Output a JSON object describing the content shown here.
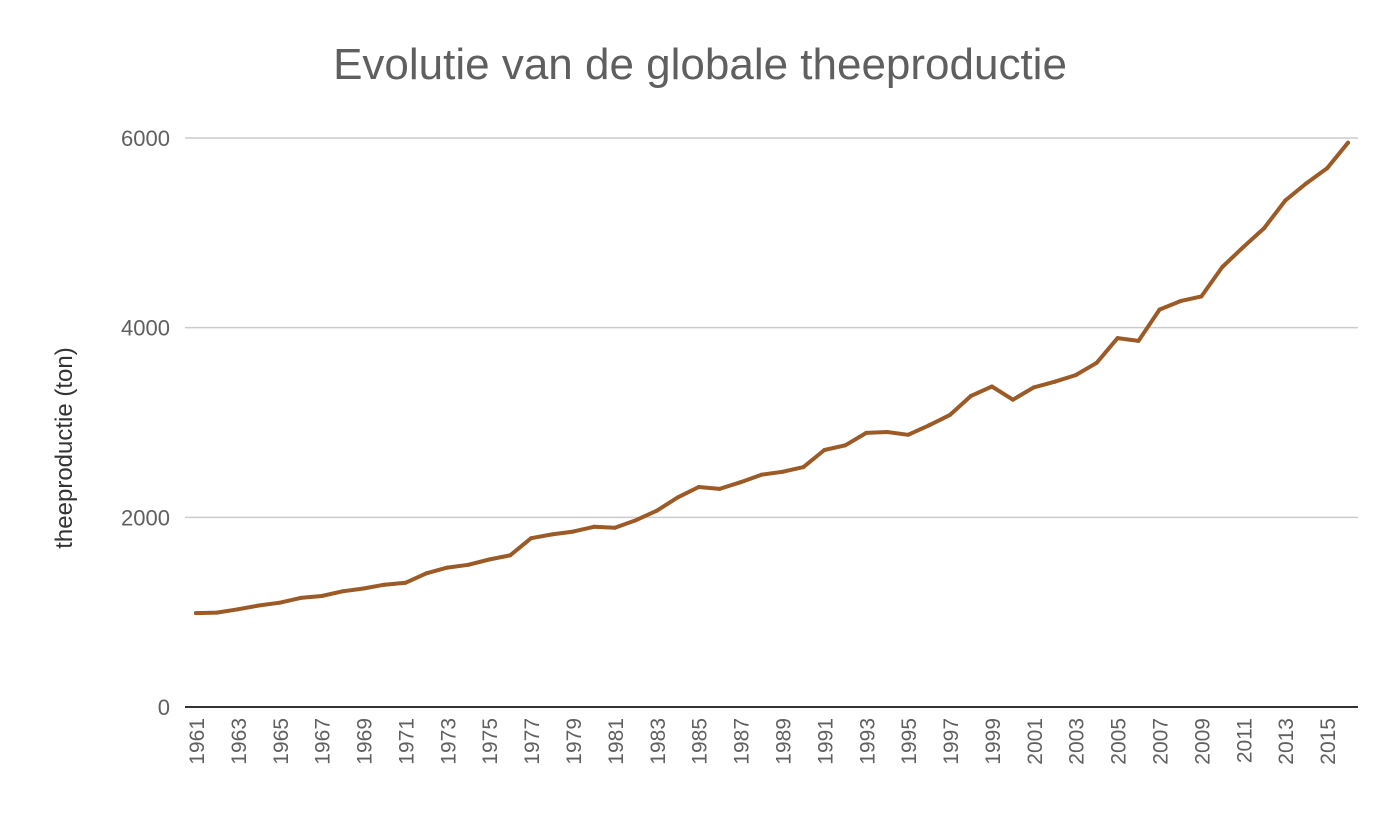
{
  "chart_data": {
    "type": "line",
    "title": "Evolutie van de globale theeproductie",
    "xlabel": "",
    "ylabel": "theeproductie (ton)",
    "ylim": [
      0,
      6000
    ],
    "y_ticks": [
      "0",
      "2000",
      "4000",
      "6000"
    ],
    "grid": true,
    "legend": "none",
    "line_color": "#9c5a26",
    "x": [
      1961,
      1962,
      1963,
      1964,
      1965,
      1966,
      1967,
      1968,
      1969,
      1970,
      1971,
      1972,
      1973,
      1974,
      1975,
      1976,
      1977,
      1978,
      1979,
      1980,
      1981,
      1982,
      1983,
      1984,
      1985,
      1986,
      1987,
      1988,
      1989,
      1990,
      1991,
      1992,
      1993,
      1994,
      1995,
      1996,
      1997,
      1998,
      1999,
      2000,
      2001,
      2002,
      2003,
      2004,
      2005,
      2006,
      2007,
      2008,
      2009,
      2010,
      2011,
      2012,
      2013,
      2014,
      2015,
      2016
    ],
    "x_tick_labels": [
      "1961",
      "1963",
      "1965",
      "1967",
      "1969",
      "1971",
      "1973",
      "1975",
      "1977",
      "1979",
      "1981",
      "1983",
      "1985",
      "1987",
      "1989",
      "1991",
      "1993",
      "1995",
      "1997",
      "1999",
      "2001",
      "2003",
      "2005",
      "2007",
      "2009",
      "2011",
      "2013",
      "2015"
    ],
    "series": [
      {
        "values": [
          990,
          995,
          1030,
          1070,
          1100,
          1150,
          1170,
          1220,
          1250,
          1290,
          1310,
          1410,
          1470,
          1500,
          1555,
          1600,
          1780,
          1820,
          1850,
          1900,
          1890,
          1970,
          2070,
          2210,
          2320,
          2300,
          2370,
          2450,
          2480,
          2530,
          2710,
          2760,
          2890,
          2900,
          2870,
          2970,
          3080,
          3280,
          3380,
          3240,
          3370,
          3430,
          3500,
          3630,
          3890,
          3860,
          4190,
          4280,
          4330,
          4640,
          4850,
          5050,
          5340,
          5520,
          5680,
          5950
        ]
      }
    ]
  }
}
